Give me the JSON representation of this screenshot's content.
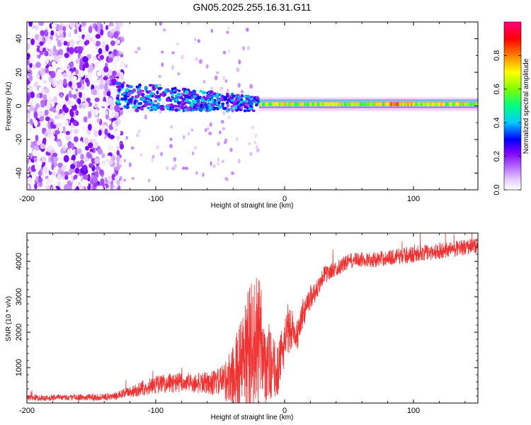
{
  "figure_title": "GN05.2025.255.16.31.G11",
  "chart_data": [
    {
      "type": "heatmap",
      "xlabel": "Height of straight line (km)",
      "ylabel": "Frequency (Hz)",
      "xlim": [
        -200,
        150
      ],
      "ylim": [
        -50,
        50
      ],
      "xticks": [
        -200,
        -100,
        0,
        100
      ],
      "xtick_labels": [
        "-200",
        "-100",
        "0",
        "100"
      ],
      "yticks": [
        -40,
        -20,
        0,
        20,
        40
      ],
      "ytick_labels": [
        "-40",
        "-20",
        "0",
        "20",
        "40"
      ],
      "colorbar": {
        "label": "Normalized spectral amplitude",
        "range": [
          0,
          1
        ],
        "ticks": [
          0,
          0.2,
          0.4,
          0.6,
          0.8
        ],
        "tick_labels": [
          "0.0",
          "0.2",
          "0.4",
          "0.6",
          "0.8"
        ],
        "colormap": [
          "#ffffff",
          "#e6ccff",
          "#b266ff",
          "#8000ff",
          "#0000ff",
          "#00c8ff",
          "#00ff80",
          "#80ff00",
          "#ffff00",
          "#ff8000",
          "#ff0000",
          "#ff0080"
        ]
      },
      "regions": [
        {
          "name": "noise",
          "x": [
            -200,
            -130
          ],
          "freq_range": [
            -50,
            50
          ],
          "amplitude": 0.1
        },
        {
          "name": "transition",
          "x": [
            -130,
            -20
          ],
          "freq_center": 2,
          "freq_halfwidth": 8,
          "amplitude": 0.4
        },
        {
          "name": "tone",
          "x": [
            -20,
            150
          ],
          "freq_center": 1,
          "freq_halfwidth": 2.5,
          "amplitude": 0.65
        }
      ]
    },
    {
      "type": "line",
      "xlabel": "Height of straight line (km)",
      "ylabel": "SNR (10 * v/v)",
      "xlim": [
        -200,
        150
      ],
      "ylim": [
        0,
        4800
      ],
      "xticks": [
        -200,
        -100,
        0,
        100
      ],
      "xtick_labels": [
        "-200",
        "-100",
        "0",
        "100"
      ],
      "yticks": [
        1000,
        2000,
        3000,
        4000
      ],
      "ytick_labels": [
        "1000",
        "2000",
        "3000",
        "4000"
      ],
      "series": [
        {
          "name": "SNR",
          "color": "#f03232",
          "x": [
            -200,
            -180,
            -160,
            -140,
            -130,
            -120,
            -110,
            -100,
            -90,
            -80,
            -70,
            -60,
            -50,
            -40,
            -35,
            -30,
            -25,
            -20,
            -15,
            -10,
            -5,
            0,
            5,
            10,
            15,
            20,
            25,
            30,
            40,
            50,
            60,
            70,
            80,
            90,
            100,
            110,
            120,
            130,
            140,
            150
          ],
          "mean": [
            150,
            150,
            160,
            170,
            200,
            320,
            420,
            520,
            560,
            580,
            560,
            560,
            600,
            750,
            900,
            1300,
            1600,
            1800,
            1300,
            1000,
            900,
            1800,
            2100,
            2000,
            2600,
            3000,
            3200,
            3600,
            3800,
            4000,
            4050,
            4050,
            4100,
            4150,
            4200,
            4250,
            4300,
            4350,
            4400,
            4450
          ],
          "spread": [
            90,
            90,
            90,
            100,
            110,
            180,
            220,
            260,
            280,
            300,
            300,
            320,
            400,
            900,
            1400,
            1900,
            2000,
            1800,
            1500,
            900,
            700,
            700,
            600,
            500,
            450,
            350,
            300,
            250,
            220,
            220,
            220,
            220,
            220,
            230,
            240,
            230,
            240,
            230,
            230,
            230
          ]
        }
      ]
    }
  ]
}
